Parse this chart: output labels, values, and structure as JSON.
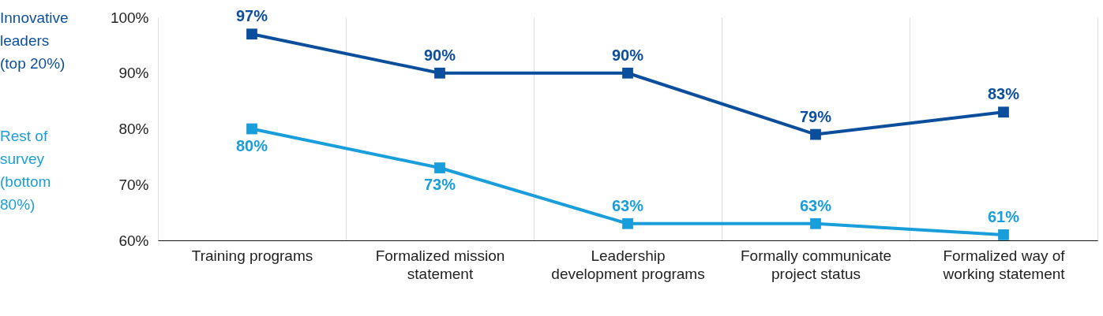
{
  "chart_data": {
    "type": "line",
    "categories": [
      "Training programs",
      "Formalized mission statement",
      "Leadership development programs",
      "Formally communicate project status",
      "Formalized way of working statement"
    ],
    "series": [
      {
        "name": "Innovative leaders (top 20%)",
        "color": "#0b4f9c",
        "values": [
          97,
          90,
          90,
          79,
          83
        ],
        "value_labels": [
          "97%",
          "90%",
          "90%",
          "79%",
          "83%"
        ]
      },
      {
        "name": "Rest of survey (bottom 80%)",
        "color": "#1a9edb",
        "values": [
          80,
          73,
          63,
          63,
          61
        ],
        "value_labels": [
          "80%",
          "73%",
          "63%",
          "63%",
          "61%"
        ]
      }
    ],
    "ylim": [
      60,
      100
    ],
    "yticks": [
      {
        "value": 60,
        "label": "60%"
      },
      {
        "value": 70,
        "label": "70%"
      },
      {
        "value": 80,
        "label": "80%"
      },
      {
        "value": 90,
        "label": "90%"
      },
      {
        "value": 100,
        "label": "100%"
      }
    ],
    "grid": "x",
    "marker": "square",
    "line_style": "solid"
  }
}
